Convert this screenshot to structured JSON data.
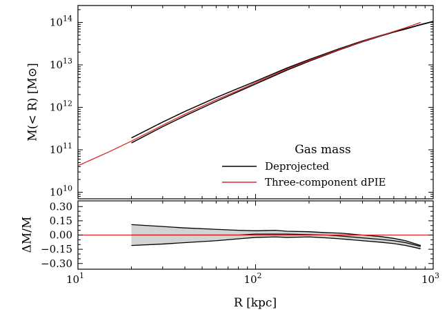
{
  "chart_data": [
    {
      "type": "line",
      "panel": "top",
      "title": "",
      "xlabel": "",
      "ylabel": "M(< R) [M⊙]",
      "xscale": "log",
      "yscale": "log",
      "xlim": [
        10,
        1000
      ],
      "ylim": [
        7000000000.0,
        250000000000000.0
      ],
      "x_ticks_shown": false,
      "y_tick_labels": [
        {
          "value": 10000000000.0,
          "base": "10",
          "exp": "10"
        },
        {
          "value": 100000000000.0,
          "base": "10",
          "exp": "11"
        },
        {
          "value": 1000000000000.0,
          "base": "10",
          "exp": "12"
        },
        {
          "value": 10000000000000.0,
          "base": "10",
          "exp": "13"
        },
        {
          "value": 100000000000000.0,
          "base": "10",
          "exp": "14"
        }
      ],
      "grid": false,
      "legend": {
        "title": "Gas mass",
        "placement": "lower-right",
        "entries": [
          {
            "label": "Deprojected",
            "color": "#000000"
          },
          {
            "label": "Three-component dPIE",
            "color": "#d62728"
          }
        ]
      },
      "series": [
        {
          "name": "Deprojected",
          "color": "#000000",
          "kind": "band-lines",
          "x": [
            20,
            30,
            40,
            60,
            80,
            100,
            150,
            200,
            300,
            400,
            500,
            600,
            700,
            850,
            1000
          ],
          "y_lower": [
            145000000000.0,
            350000000000.0,
            630000000000.0,
            1380000000000.0,
            2350000000000.0,
            3550000000000.0,
            7500000000000.0,
            12200000000000.0,
            23000000000000.0,
            35000000000000.0,
            47000000000000.0,
            59000000000000.0,
            70000000000000.0,
            88000000000000.0,
            105000000000000.0
          ],
          "y_upper": [
            190000000000.0,
            450000000000.0,
            800000000000.0,
            1700000000000.0,
            2800000000000.0,
            4100000000000.0,
            8400000000000.0,
            13300000000000.0,
            24500000000000.0,
            36500000000000.0,
            48500000000000.0,
            60000000000000.0,
            71000000000000.0,
            89000000000000.0,
            106000000000000.0
          ]
        },
        {
          "name": "Three-component dPIE",
          "color": "#d62728",
          "kind": "line",
          "x": [
            10,
            15,
            20,
            30,
            40,
            60,
            80,
            100,
            150,
            200,
            300,
            400,
            500,
            600,
            700,
            850
          ],
          "y": [
            42000000000.0,
            90000000000.0,
            160000000000.0,
            380000000000.0,
            690000000000.0,
            1500000000000.0,
            2500000000000.0,
            3800000000000.0,
            7900000000000.0,
            12700000000000.0,
            23500000000000.0,
            35500000000000.0,
            48000000000000.0,
            61000000000000.0,
            75000000000000.0,
            100000000000000.0
          ]
        }
      ]
    },
    {
      "type": "area",
      "panel": "bottom",
      "title": "",
      "xlabel": "R [kpc]",
      "ylabel": "ΔM/M",
      "xscale": "log",
      "yscale": "linear",
      "xlim": [
        10,
        1000
      ],
      "ylim": [
        -0.36,
        0.36
      ],
      "x_tick_labels": [
        {
          "value": 10,
          "base": "10",
          "exp": "1"
        },
        {
          "value": 100,
          "base": "10",
          "exp": "2"
        },
        {
          "value": 1000,
          "base": "10",
          "exp": "3"
        }
      ],
      "y_tick_labels": [
        {
          "value": 0.3,
          "label": "0.30"
        },
        {
          "value": 0.15,
          "label": "0.15"
        },
        {
          "value": 0.0,
          "label": "0.00"
        },
        {
          "value": -0.15,
          "label": "−0.15"
        },
        {
          "value": -0.3,
          "label": "−0.30"
        }
      ],
      "grid": false,
      "band": {
        "color": "#d3d3d3",
        "edge_color": "#000000",
        "x": [
          20,
          30,
          40,
          60,
          80,
          100,
          130,
          150,
          200,
          250,
          300,
          400,
          500,
          600,
          700,
          850
        ],
        "upper": [
          0.11,
          0.09,
          0.075,
          0.06,
          0.05,
          0.045,
          0.05,
          0.04,
          0.035,
          0.025,
          0.02,
          0.0,
          -0.015,
          -0.035,
          -0.06,
          -0.11
        ],
        "lower": [
          -0.11,
          -0.095,
          -0.08,
          -0.06,
          -0.04,
          -0.025,
          -0.02,
          -0.025,
          -0.02,
          -0.03,
          -0.04,
          -0.06,
          -0.075,
          -0.09,
          -0.11,
          -0.145
        ]
      },
      "series": [
        {
          "name": "",
          "color": "#000000",
          "x": [
            20,
            40,
            60,
            80,
            100,
            150,
            200,
            250,
            300,
            400,
            500,
            600,
            700,
            850
          ],
          "y": [
            0.0,
            0.0,
            0.0,
            0.0,
            0.01,
            0.01,
            0.005,
            0.0,
            -0.01,
            -0.03,
            -0.045,
            -0.06,
            -0.08,
            -0.12
          ]
        },
        {
          "name": "",
          "color": "#d62728",
          "x": [
            10,
            1000
          ],
          "y": [
            0.0,
            0.0
          ]
        }
      ]
    }
  ]
}
